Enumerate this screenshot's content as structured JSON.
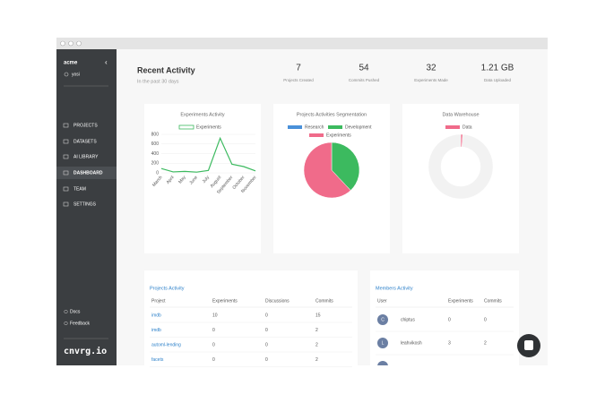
{
  "sidebar": {
    "org": "acme",
    "user": "yosi",
    "menu": [
      "PROJECTS",
      "DATASETS",
      "AI LIBRARY",
      "DASHBOARD",
      "TEAM",
      "SETTINGS"
    ],
    "active": 3,
    "footer": [
      "Docs",
      "Feedback"
    ],
    "brand": "cnvrg.io"
  },
  "header": {
    "title": "Recent Activity",
    "subtitle": "In the past 30 days"
  },
  "stats": [
    {
      "value": "7",
      "label": "Projects Created"
    },
    {
      "value": "54",
      "label": "Commits Pushed"
    },
    {
      "value": "32",
      "label": "Experiments Made"
    },
    {
      "value": "1.21 GB",
      "label": "Data Uploaded"
    }
  ],
  "chart_data": [
    {
      "type": "line",
      "title": "Experiments Activity",
      "categories": [
        "March",
        "April",
        "May",
        "June",
        "July",
        "August",
        "September",
        "October",
        "November"
      ],
      "series": [
        {
          "name": "Experiments",
          "color": "#3cba5f",
          "values": [
            90,
            20,
            30,
            15,
            50,
            720,
            180,
            130,
            40
          ]
        }
      ],
      "ylim": [
        0,
        800
      ],
      "yticks": [
        0,
        200,
        400,
        600,
        800
      ]
    },
    {
      "type": "pie",
      "title": "Projects Activities Segmentation",
      "categories": [
        "Research",
        "Development",
        "Experiments"
      ],
      "values": [
        0,
        38,
        62
      ],
      "colors": [
        "#4a90d9",
        "#3cba5f",
        "#f06b8a"
      ]
    },
    {
      "type": "donut",
      "title": "Data Warehouse",
      "categories": [
        "Data",
        null
      ],
      "values": [
        1,
        99
      ],
      "colors": [
        "#f06b8a",
        "#f2f2f2"
      ]
    }
  ],
  "projects": {
    "title": "Projects Activity",
    "columns": [
      "Project",
      "Experiments",
      "Discussions",
      "Commits"
    ],
    "rows": [
      [
        "imdb",
        "10",
        "0",
        "15"
      ],
      [
        "imdb",
        "0",
        "0",
        "2"
      ],
      [
        "automl-lending",
        "0",
        "0",
        "2"
      ],
      [
        "facets",
        "0",
        "0",
        "2"
      ]
    ]
  },
  "members": {
    "title": "Members Activity",
    "columns": [
      "User",
      "Experiments",
      "Commits"
    ],
    "rows": [
      [
        "chiptus",
        "0",
        "0"
      ],
      [
        "leahvikosh",
        "3",
        "2"
      ]
    ],
    "initials": [
      "C",
      "L"
    ]
  }
}
